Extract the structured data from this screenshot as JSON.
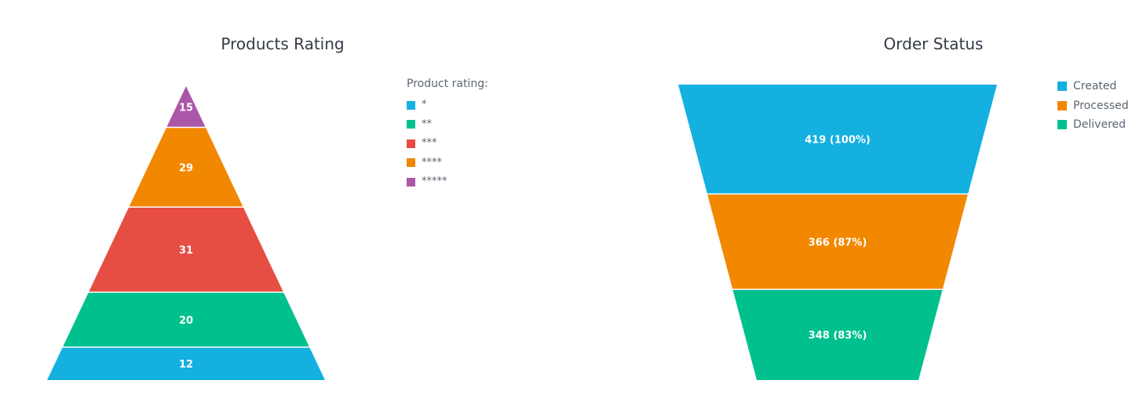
{
  "charts": {
    "products_rating": {
      "title": "Products Rating",
      "legend_heading": "Product rating:"
    },
    "order_status": {
      "title": "Order Status"
    }
  },
  "chart_data": [
    {
      "type": "pyramid",
      "title": "Products Rating",
      "legend_title": "Product rating:",
      "legend_position": "right",
      "categories": [
        "*",
        "**",
        "***",
        "****",
        "*****"
      ],
      "values": [
        12,
        20,
        31,
        29,
        15
      ],
      "colors": [
        "#14b0e0",
        "#00c18d",
        "#e64e43",
        "#f28700",
        "#ab57a8"
      ],
      "data_labels": [
        "12",
        "20",
        "31",
        "29",
        "15"
      ]
    },
    {
      "type": "funnel",
      "title": "Order Status",
      "legend_position": "top-right",
      "categories": [
        "Created",
        "Processed",
        "Delivered"
      ],
      "values": [
        419,
        366,
        348
      ],
      "percent": [
        100,
        87,
        83
      ],
      "colors": [
        "#14b0e0",
        "#f28700",
        "#00c18d"
      ],
      "data_labels": [
        "419 (100%)",
        "366 (87%)",
        "348 (83%)"
      ]
    }
  ]
}
